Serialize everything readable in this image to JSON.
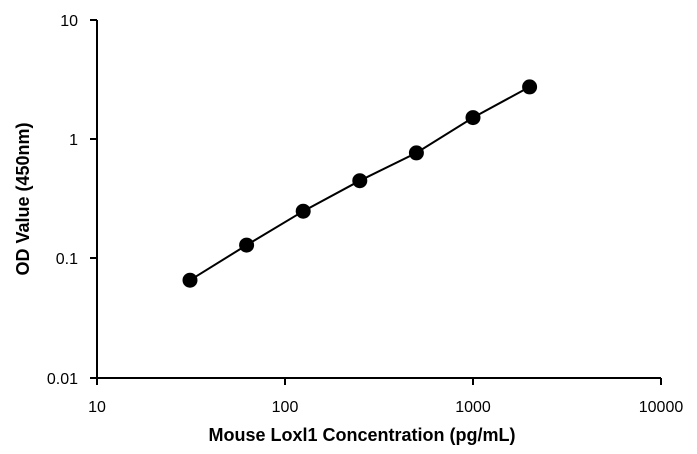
{
  "chart_data": {
    "type": "scatter",
    "title": "",
    "xlabel": "Mouse Loxl1 Concentration (pg/mL)",
    "ylabel": "OD Value (450nm)",
    "xscale": "log",
    "yscale": "log",
    "xlim": [
      10,
      10000
    ],
    "ylim": [
      0.01,
      10
    ],
    "x_ticks": [
      "10",
      "100",
      "1000",
      "10000"
    ],
    "y_ticks": [
      "0.01",
      "0.1",
      "1",
      "10"
    ],
    "grid": false,
    "legend": "none",
    "series": [
      {
        "x": [
          31.25,
          62.5,
          125,
          250,
          500,
          1000,
          2000
        ],
        "y": [
          0.066,
          0.13,
          0.25,
          0.45,
          0.77,
          1.52,
          2.75
        ]
      }
    ]
  }
}
